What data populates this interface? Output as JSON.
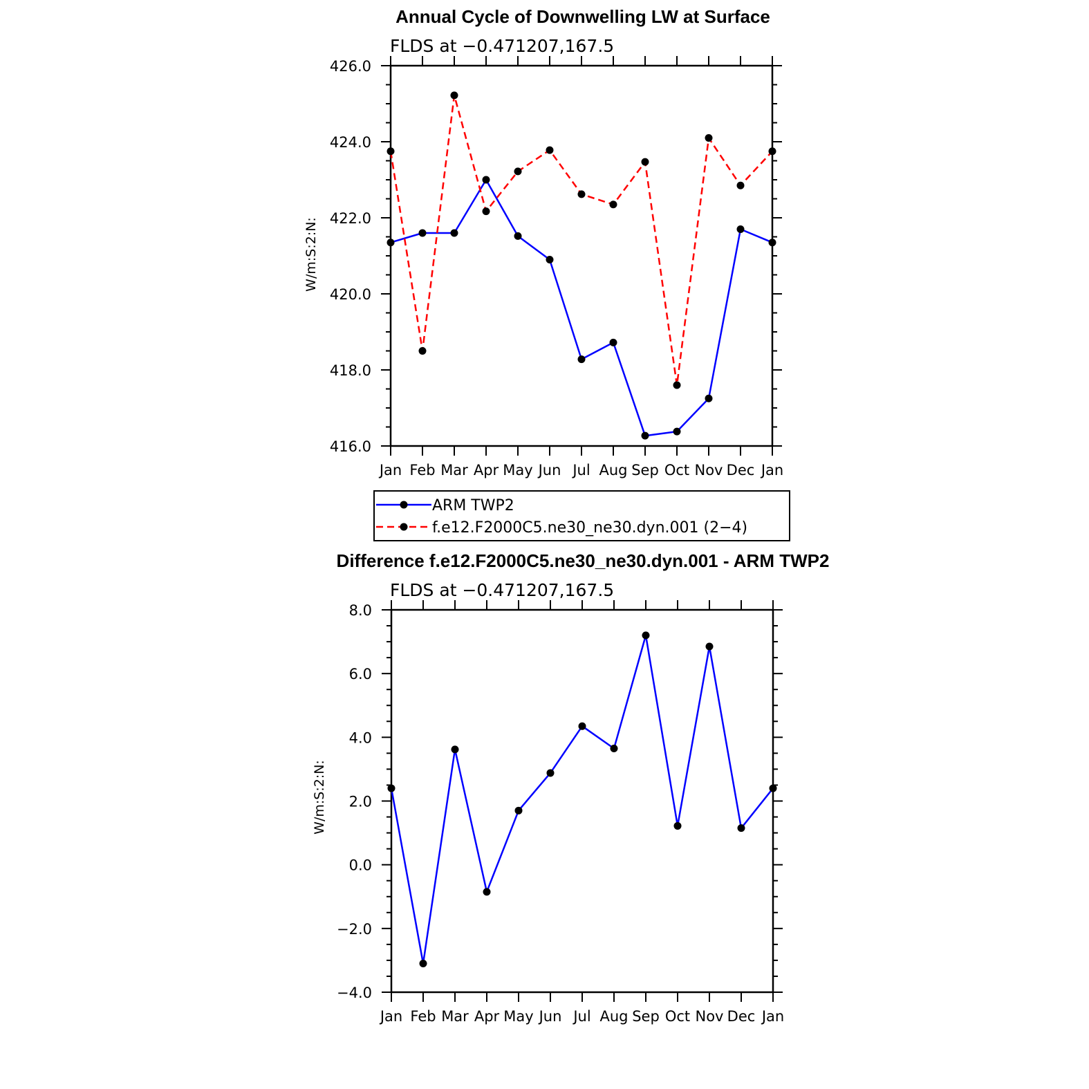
{
  "chart_data": [
    {
      "type": "line",
      "title": "Annual Cycle of Downwelling LW at Surface",
      "subtitle": "FLDS at −0.471207,167.5",
      "ylabel": "W/m:S:2:N:",
      "xlabel": "",
      "categories": [
        "Jan",
        "Feb",
        "Mar",
        "Apr",
        "May",
        "Jun",
        "Jul",
        "Aug",
        "Sep",
        "Oct",
        "Nov",
        "Dec",
        "Jan"
      ],
      "ylim": [
        416.0,
        426.0
      ],
      "yticks": [
        "416.0",
        "418.0",
        "420.0",
        "422.0",
        "424.0",
        "426.0"
      ],
      "grid": false,
      "legend_position": "bottom",
      "series": [
        {
          "name": "ARM TWP2",
          "color": "#0000ff",
          "dash": "solid",
          "values": [
            421.35,
            421.6,
            421.6,
            423.0,
            421.52,
            420.9,
            418.28,
            418.72,
            416.27,
            416.38,
            417.25,
            421.7,
            421.35
          ]
        },
        {
          "name": "f.e12.F2000C5.ne30_ne30.dyn.001 (2−4)",
          "color": "#ff0000",
          "dash": "dashed",
          "values": [
            423.75,
            418.5,
            425.22,
            422.17,
            423.22,
            423.78,
            422.62,
            422.35,
            423.47,
            417.6,
            424.1,
            422.85,
            423.75
          ]
        }
      ]
    },
    {
      "type": "line",
      "title": "Difference f.e12.F2000C5.ne30_ne30.dyn.001 - ARM TWP2",
      "subtitle": "FLDS at −0.471207,167.5",
      "ylabel": "W/m:S:2:N:",
      "xlabel": "",
      "categories": [
        "Jan",
        "Feb",
        "Mar",
        "Apr",
        "May",
        "Jun",
        "Jul",
        "Aug",
        "Sep",
        "Oct",
        "Nov",
        "Dec",
        "Jan"
      ],
      "ylim": [
        -4.0,
        8.0
      ],
      "yticks": [
        "−4.0",
        "−2.0",
        "0.0",
        "2.0",
        "4.0",
        "6.0",
        "8.0"
      ],
      "grid": false,
      "series": [
        {
          "color": "#0000ff",
          "dash": "solid",
          "values": [
            2.4,
            -3.1,
            3.62,
            -0.85,
            1.7,
            2.88,
            4.35,
            3.65,
            7.2,
            1.22,
            6.85,
            1.15,
            2.4
          ]
        }
      ]
    }
  ]
}
